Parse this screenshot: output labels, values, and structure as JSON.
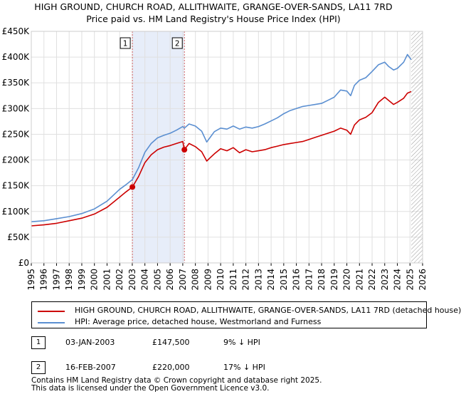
{
  "title_line1": "HIGH GROUND, CHURCH ROAD, ALLITHWAITE, GRANGE-OVER-SANDS, LA11 7RD",
  "title_line2": "Price paid vs. HM Land Registry's House Price Index (HPI)",
  "chart_data": {
    "type": "line",
    "title": "HIGH GROUND, CHURCH ROAD, ALLITHWAITE, GRANGE-OVER-SANDS, LA11 7RD - Price paid vs. HM Land Registry's House Price Index (HPI)",
    "xlabel": "",
    "ylabel": "",
    "xlim": [
      1995,
      2026
    ],
    "ylim": [
      0,
      450000
    ],
    "yticks": [
      {
        "value": 0,
        "label": "£0"
      },
      {
        "value": 50000,
        "label": "£50K"
      },
      {
        "value": 100000,
        "label": "£100K"
      },
      {
        "value": 150000,
        "label": "£150K"
      },
      {
        "value": 200000,
        "label": "£200K"
      },
      {
        "value": 250000,
        "label": "£250K"
      },
      {
        "value": 300000,
        "label": "£300K"
      },
      {
        "value": 350000,
        "label": "£350K"
      },
      {
        "value": 400000,
        "label": "£400K"
      },
      {
        "value": 450000,
        "label": "£450K"
      }
    ],
    "xticks": [
      "1995",
      "1996",
      "1997",
      "1998",
      "1999",
      "2000",
      "2001",
      "2002",
      "2003",
      "2004",
      "2005",
      "2006",
      "2007",
      "2008",
      "2009",
      "2010",
      "2011",
      "2012",
      "2013",
      "2014",
      "2015",
      "2016",
      "2017",
      "2018",
      "2019",
      "2020",
      "2021",
      "2022",
      "2023",
      "2024",
      "2025",
      "2026"
    ],
    "grid": true,
    "shaded_region": [
      2003.01,
      2007.13
    ],
    "forecast_from": 2025.1,
    "series": [
      {
        "name": "HIGH GROUND, CHURCH ROAD, ALLITHWAITE, GRANGE-OVER-SANDS, LA11 7RD (detached house)",
        "color": "#cc0000",
        "x": [
          1995,
          1996,
          1997,
          1998,
          1999,
          2000,
          2001,
          2002,
          2002.5,
          2003.01,
          2003.5,
          2004,
          2004.5,
          2005,
          2005.5,
          2006,
          2006.5,
          2007.0,
          2007.13,
          2007.5,
          2008,
          2008.5,
          2008.9,
          2009.2,
          2009.5,
          2010,
          2010.5,
          2011,
          2011.5,
          2012,
          2012.5,
          2013,
          2013.5,
          2014,
          2014.5,
          2015,
          2015.5,
          2016,
          2016.5,
          2017,
          2017.5,
          2018,
          2018.5,
          2019,
          2019.5,
          2020,
          2020.3,
          2020.6,
          2021,
          2021.5,
          2022,
          2022.5,
          2023,
          2023.3,
          2023.7,
          2024,
          2024.5,
          2024.8,
          2025.1
        ],
        "y": [
          72000,
          74000,
          77000,
          82000,
          87000,
          95000,
          108000,
          128000,
          138000,
          147500,
          168000,
          195000,
          210000,
          220000,
          225000,
          228000,
          232000,
          236000,
          220000,
          232000,
          226000,
          216000,
          198000,
          205000,
          212000,
          222000,
          218000,
          224000,
          214000,
          220000,
          216000,
          218000,
          220000,
          224000,
          227000,
          230000,
          232000,
          234000,
          236000,
          240000,
          244000,
          248000,
          252000,
          256000,
          262000,
          258000,
          250000,
          268000,
          278000,
          283000,
          292000,
          312000,
          322000,
          316000,
          308000,
          312000,
          320000,
          330000,
          333000
        ]
      },
      {
        "name": "HPI: Average price, detached house, Westmorland and Furness",
        "color": "#5b8fd1",
        "x": [
          1995,
          1996,
          1997,
          1998,
          1999,
          2000,
          2001,
          2002,
          2002.5,
          2003.01,
          2003.5,
          2004,
          2004.5,
          2005,
          2005.5,
          2006,
          2006.5,
          2007.0,
          2007.13,
          2007.5,
          2008,
          2008.5,
          2008.9,
          2009.2,
          2009.5,
          2010,
          2010.5,
          2011,
          2011.5,
          2012,
          2012.5,
          2013,
          2013.5,
          2014,
          2014.5,
          2015,
          2015.5,
          2016,
          2016.5,
          2017,
          2017.5,
          2018,
          2018.5,
          2019,
          2019.5,
          2020,
          2020.3,
          2020.6,
          2021,
          2021.5,
          2022,
          2022.5,
          2023,
          2023.3,
          2023.7,
          2024,
          2024.5,
          2024.8,
          2025.1
        ],
        "y": [
          80000,
          82000,
          86000,
          90000,
          96000,
          105000,
          120000,
          143000,
          152000,
          162000,
          185000,
          215000,
          232000,
          243000,
          248000,
          252000,
          258000,
          265000,
          262000,
          270000,
          266000,
          256000,
          235000,
          245000,
          255000,
          262000,
          260000,
          266000,
          260000,
          264000,
          262000,
          265000,
          270000,
          276000,
          282000,
          290000,
          296000,
          300000,
          304000,
          306000,
          308000,
          310000,
          316000,
          322000,
          336000,
          334000,
          325000,
          345000,
          355000,
          360000,
          372000,
          385000,
          390000,
          382000,
          375000,
          378000,
          390000,
          405000,
          395000
        ]
      }
    ],
    "annotations": [
      {
        "label": "1",
        "x": 2003.01,
        "y": 147500
      },
      {
        "label": "2",
        "x": 2007.13,
        "y": 220000
      }
    ]
  },
  "legend": {
    "items": [
      {
        "label": "HIGH GROUND, CHURCH ROAD, ALLITHWAITE, GRANGE-OVER-SANDS, LA11 7RD (detached house)",
        "color": "#cc0000"
      },
      {
        "label": "HPI: Average price, detached house, Westmorland and Furness",
        "color": "#5b8fd1"
      }
    ]
  },
  "sales": [
    {
      "num": "1",
      "date": "03-JAN-2003",
      "price": "£147,500",
      "hpi": "9% ↓ HPI"
    },
    {
      "num": "2",
      "date": "16-FEB-2007",
      "price": "£220,000",
      "hpi": "17% ↓ HPI"
    }
  ],
  "footer": {
    "line1": "Contains HM Land Registry data © Crown copyright and database right 2025.",
    "line2": "This data is licensed under the Open Government Licence v3.0."
  }
}
